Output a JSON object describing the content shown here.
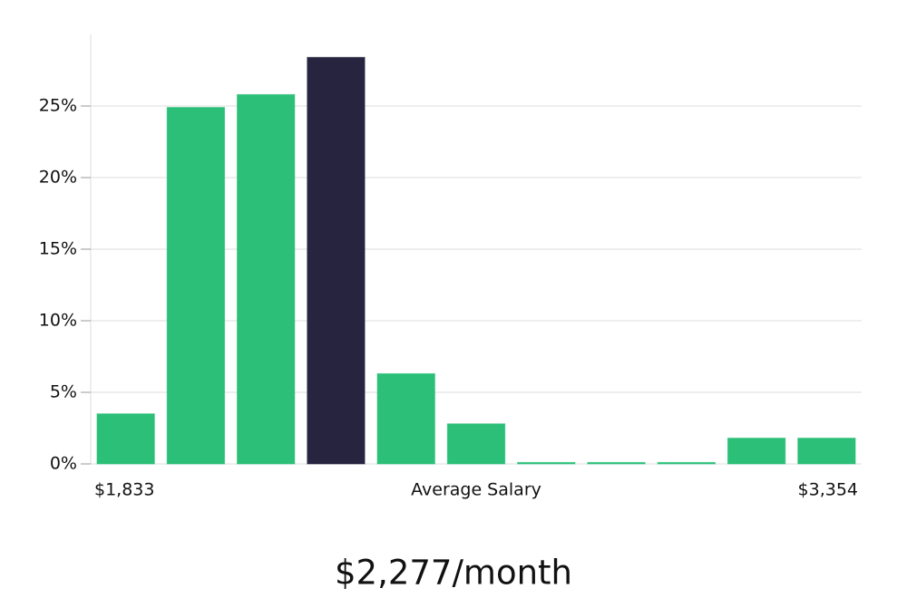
{
  "chart_data": {
    "type": "bar",
    "categories": [
      null,
      null,
      null,
      null,
      null,
      null,
      null,
      null,
      null,
      null,
      null
    ],
    "values": [
      3.5,
      24.9,
      25.8,
      28.4,
      6.3,
      2.8,
      0.1,
      0.1,
      0.1,
      1.8,
      1.8
    ],
    "colors": [
      "#2bbf78",
      "#2bbf78",
      "#2bbf78",
      "#27243f",
      "#2bbf78",
      "#2bbf78",
      "#2bbf78",
      "#2bbf78",
      "#2bbf78",
      "#2bbf78",
      "#2bbf78"
    ],
    "ylim": [
      0,
      30
    ],
    "yticks": [
      {
        "value": 0,
        "label": "0%"
      },
      {
        "value": 5,
        "label": "5%"
      },
      {
        "value": 10,
        "label": "10%"
      },
      {
        "value": 15,
        "label": "15%"
      },
      {
        "value": 20,
        "label": "20%"
      },
      {
        "value": 25,
        "label": "25%"
      }
    ],
    "grid": true,
    "x_min_label": "$1,833",
    "xlabel": "Average Salary",
    "x_max_label": "$3,354",
    "footer": "$2,277/month"
  }
}
